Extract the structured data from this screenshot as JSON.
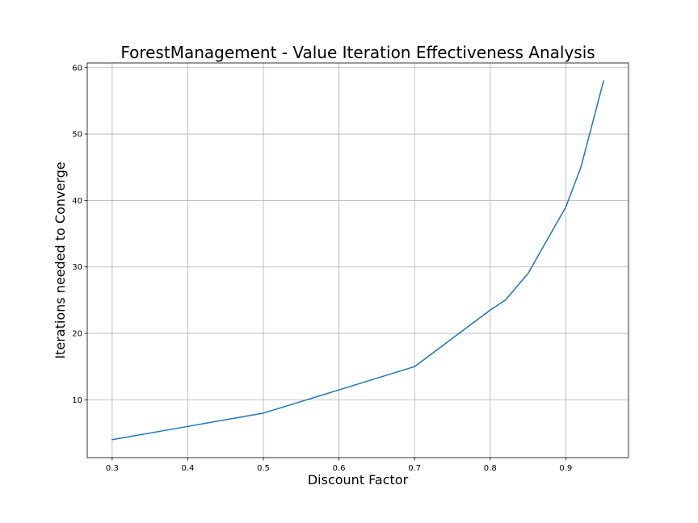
{
  "chart_data": {
    "type": "line",
    "title": "ForestManagement - Value Iteration Effectiveness Analysis",
    "xlabel": "Discount Factor",
    "ylabel": "Iterations needed to Converge",
    "xlim": [
      0.267,
      0.983
    ],
    "ylim": [
      1.3,
      60.7
    ],
    "xticks": [
      "0.3",
      "0.4",
      "0.5",
      "0.6",
      "0.7",
      "0.8",
      "0.9"
    ],
    "yticks": [
      "10",
      "20",
      "30",
      "40",
      "50",
      "60"
    ],
    "grid": true,
    "x": [
      0.3,
      0.4,
      0.5,
      0.6,
      0.7,
      0.8,
      0.82,
      0.85,
      0.9,
      0.92,
      0.95
    ],
    "series": [
      {
        "color": "#1f77b4",
        "values": [
          4,
          6,
          8,
          11.5,
          15,
          23.5,
          25,
          29,
          39,
          45,
          58
        ]
      }
    ]
  }
}
